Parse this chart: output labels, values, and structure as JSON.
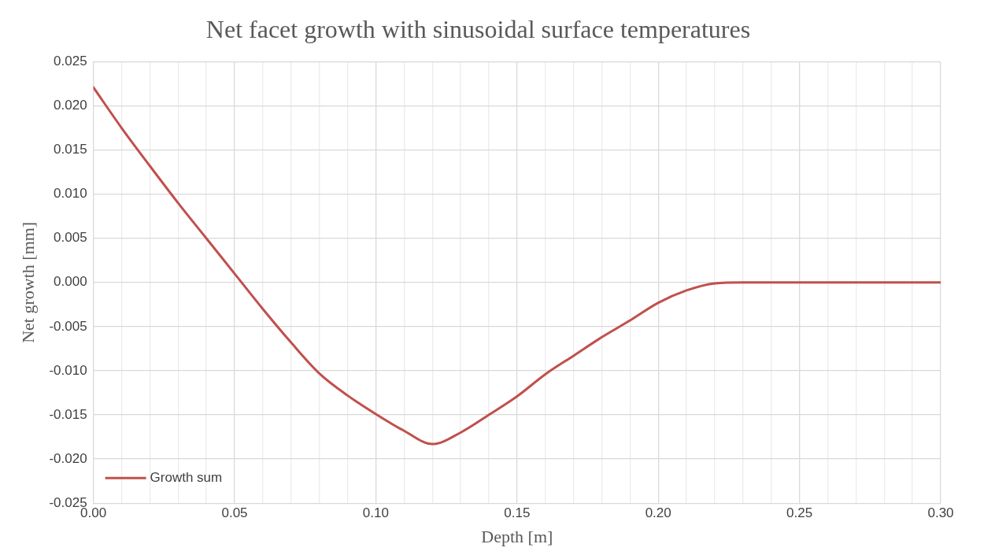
{
  "chart_data": {
    "type": "line",
    "title": "Net facet growth with sinusoidal surface temperatures",
    "xlabel": "Depth [m]",
    "ylabel": "Net growth [mm]",
    "x": [
      0,
      0.01,
      0.02,
      0.03,
      0.04,
      0.05,
      0.06,
      0.07,
      0.08,
      0.09,
      0.1,
      0.11,
      0.12,
      0.13,
      0.14,
      0.15,
      0.16,
      0.17,
      0.18,
      0.19,
      0.2,
      0.21,
      0.22,
      0.23,
      0.3
    ],
    "series": [
      {
        "name": "Growth sum",
        "color": "#c0504d",
        "values": [
          0.0221,
          0.0175,
          0.0132,
          0.009,
          0.005,
          0.001,
          -0.003,
          -0.0068,
          -0.0103,
          -0.0128,
          -0.0149,
          -0.0168,
          -0.0183,
          -0.017,
          -0.015,
          -0.0129,
          -0.0104,
          -0.0083,
          -0.0062,
          -0.0043,
          -0.0023,
          -0.0009,
          -0.0001,
          0,
          0
        ]
      }
    ],
    "xlim": [
      0,
      0.3
    ],
    "xticks": [
      {
        "value": 0,
        "label": "0.00"
      },
      {
        "value": 0.01,
        "label": null
      },
      {
        "value": 0.02,
        "label": null
      },
      {
        "value": 0.03,
        "label": null
      },
      {
        "value": 0.04,
        "label": null
      },
      {
        "value": 0.05,
        "label": "0.05"
      },
      {
        "value": 0.06,
        "label": null
      },
      {
        "value": 0.07,
        "label": null
      },
      {
        "value": 0.08,
        "label": null
      },
      {
        "value": 0.09,
        "label": null
      },
      {
        "value": 0.1,
        "label": "0.10"
      },
      {
        "value": 0.11,
        "label": null
      },
      {
        "value": 0.12,
        "label": null
      },
      {
        "value": 0.13,
        "label": null
      },
      {
        "value": 0.14,
        "label": null
      },
      {
        "value": 0.15,
        "label": "0.15"
      },
      {
        "value": 0.16,
        "label": null
      },
      {
        "value": 0.17,
        "label": null
      },
      {
        "value": 0.18,
        "label": null
      },
      {
        "value": 0.19,
        "label": null
      },
      {
        "value": 0.2,
        "label": "0.20"
      },
      {
        "value": 0.21,
        "label": null
      },
      {
        "value": 0.22,
        "label": null
      },
      {
        "value": 0.23,
        "label": null
      },
      {
        "value": 0.24,
        "label": null
      },
      {
        "value": 0.25,
        "label": "0.25"
      },
      {
        "value": 0.26,
        "label": null
      },
      {
        "value": 0.27,
        "label": null
      },
      {
        "value": 0.28,
        "label": null
      },
      {
        "value": 0.29,
        "label": null
      },
      {
        "value": 0.3,
        "label": "0.30"
      }
    ],
    "ylim": [
      -0.025,
      0.025
    ],
    "yticks": [
      {
        "value": -0.025,
        "label": "-0.025"
      },
      {
        "value": -0.02,
        "label": "-0.020"
      },
      {
        "value": -0.015,
        "label": "-0.015"
      },
      {
        "value": -0.01,
        "label": "-0.010"
      },
      {
        "value": -0.005,
        "label": "-0.005"
      },
      {
        "value": 0,
        "label": "0.000"
      },
      {
        "value": 0.005,
        "label": "0.005"
      },
      {
        "value": 0.01,
        "label": "0.010"
      },
      {
        "value": 0.015,
        "label": "0.015"
      },
      {
        "value": 0.02,
        "label": "0.020"
      },
      {
        "value": 0.025,
        "label": "0.025"
      }
    ],
    "grid": true,
    "legend": "bottom left",
    "marker": "none",
    "line_style": "solid"
  }
}
